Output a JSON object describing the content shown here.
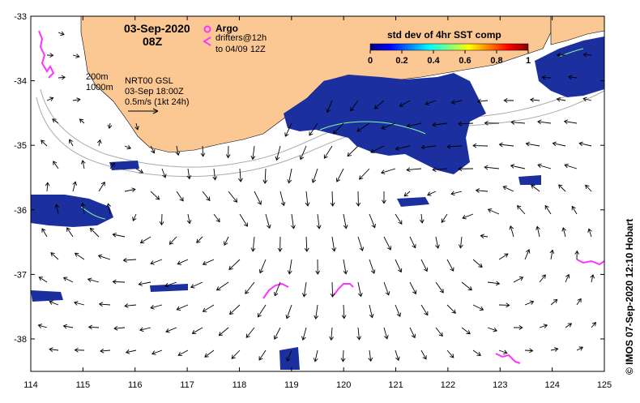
{
  "header": {
    "date": "03-Sep-2020",
    "hour": "08Z",
    "argo_label": "Argo",
    "drifters_label": "drifters@12h",
    "drifters_range": "to 04/09 12Z"
  },
  "contours": {
    "line1": "200m",
    "line2": "1000m"
  },
  "current_info": {
    "product": "NRT00 GSL",
    "time": "03-Sep 18:00Z",
    "scale": "0.5m/s (1kt 24h)"
  },
  "colorbar": {
    "title": "std dev of 4hr SST comp",
    "ticks": [
      "0",
      "0.2",
      "0.4",
      "0.6",
      "0.8",
      "1"
    ],
    "colors": [
      "#00007f",
      "#0000ff",
      "#007fff",
      "#00ffff",
      "#7fff7f",
      "#ffff00",
      "#ff7f00",
      "#ff0000",
      "#7f0000"
    ]
  },
  "axes": {
    "x_ticks": [
      "114",
      "115",
      "116",
      "117",
      "118",
      "119",
      "120",
      "121",
      "122",
      "123",
      "124",
      "125"
    ],
    "y_ticks": [
      "-33",
      "-34",
      "-35",
      "-36",
      "-37",
      "-38"
    ]
  },
  "credit": "© IMOS 07-Sep-2020 12:10 Hobart",
  "colors": {
    "land": "#fbc894",
    "sst_low": "#1c2f9e",
    "drifter": "#ff33ff",
    "bathy": "#aaaaaa"
  }
}
